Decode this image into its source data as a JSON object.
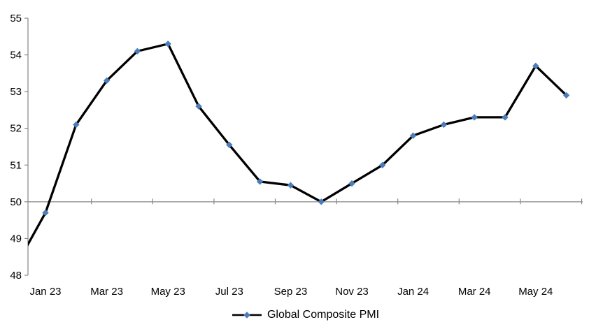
{
  "chart_data": {
    "type": "line",
    "title": "",
    "x": [
      "Dec 22",
      "Jan 23",
      "Feb 23",
      "Mar 23",
      "Apr 23",
      "May 23",
      "Jun 23",
      "Jul 23",
      "Aug 23",
      "Sep 23",
      "Oct 23",
      "Nov 23",
      "Dec 23",
      "Jan 24",
      "Feb 24",
      "Mar 24",
      "Apr 24",
      "May 24",
      "Jun 24"
    ],
    "series": [
      {
        "name": "Global Composite PMI",
        "values": [
          48.2,
          49.7,
          52.1,
          53.3,
          54.1,
          54.3,
          52.6,
          51.55,
          50.55,
          50.45,
          50.0,
          50.5,
          51.0,
          51.8,
          52.1,
          52.3,
          52.3,
          53.7,
          52.9
        ]
      }
    ],
    "xlabel": "",
    "ylabel": "",
    "ylim": [
      48,
      55
    ],
    "y_tick_labels": [
      "48",
      "49",
      "50",
      "51",
      "52",
      "53",
      "54",
      "55"
    ],
    "x_tick_labels": [
      "Jan 23",
      "Mar 23",
      "May 23",
      "Jul 23",
      "Sep 23",
      "Nov 23",
      "Jan 24",
      "Mar 24",
      "May 24"
    ],
    "grid": false,
    "legend_position": "bottom-center",
    "layout_hints": {
      "x_axis_crosses_at": 50,
      "x_label_interval_months": 2,
      "first_point_clipped_at_left_edge": true,
      "visible_value_at_left_edge": 48.9
    },
    "colors": {
      "line": "#000000",
      "marker": "#4A7EBB",
      "axis": "#878787",
      "text": "#000000",
      "background": "#FFFFFF"
    }
  }
}
